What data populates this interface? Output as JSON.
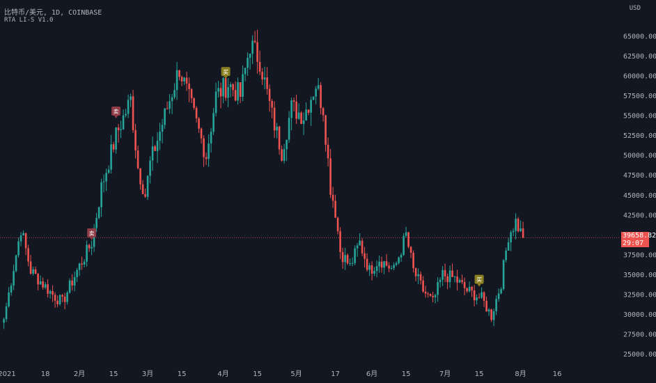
{
  "header": {
    "symbol_line": "比特币/美元, 1D, COINBASE",
    "indicator_line": "RTA LI-S V1.0"
  },
  "price_label": {
    "value": "39658.82",
    "countdown": "29:07"
  },
  "colors": {
    "background": "#131722",
    "up": "#26a69a",
    "down": "#ef5350",
    "text": "#b2b5be",
    "sell_marker": "#8e3b46",
    "buy_marker": "#8a7f1f"
  },
  "chart_data": {
    "type": "candlestick",
    "title": "比特币/美元, 1D, COINBASE",
    "ylabel": "USD",
    "ylim": [
      23500,
      67000
    ],
    "y_ticks": [
      25000,
      27500,
      30000,
      32500,
      35000,
      37500,
      40000,
      42500,
      45000,
      47500,
      50000,
      52500,
      55000,
      57500,
      60000,
      62500,
      65000
    ],
    "x_tick_labels": [
      {
        "label": "2021",
        "day": 0
      },
      {
        "label": "18",
        "day": 17
      },
      {
        "label": "2月",
        "day": 31
      },
      {
        "label": "15",
        "day": 45
      },
      {
        "label": "3月",
        "day": 59
      },
      {
        "label": "15",
        "day": 73
      },
      {
        "label": "4月",
        "day": 90
      },
      {
        "label": "15",
        "day": 104
      },
      {
        "label": "5月",
        "day": 120
      },
      {
        "label": "17",
        "day": 136
      },
      {
        "label": "6月",
        "day": 151
      },
      {
        "label": "15",
        "day": 165
      },
      {
        "label": "7月",
        "day": 181
      },
      {
        "label": "15",
        "day": 195
      },
      {
        "label": "8月",
        "day": 212
      },
      {
        "label": "16",
        "day": 227
      }
    ],
    "close_anchors": [
      [
        0,
        29400
      ],
      [
        7,
        40800
      ],
      [
        11,
        35500
      ],
      [
        20,
        32500
      ],
      [
        24,
        31500
      ],
      [
        30,
        35500
      ],
      [
        36,
        39000
      ],
      [
        40,
        46000
      ],
      [
        46,
        52500
      ],
      [
        52,
        57000
      ],
      [
        55,
        48500
      ],
      [
        58,
        45000
      ],
      [
        60,
        49000
      ],
      [
        66,
        55000
      ],
      [
        72,
        61000
      ],
      [
        76,
        57000
      ],
      [
        83,
        50000
      ],
      [
        87,
        57500
      ],
      [
        92,
        59000
      ],
      [
        97,
        57500
      ],
      [
        101,
        64000
      ],
      [
        105,
        62000
      ],
      [
        110,
        55000
      ],
      [
        114,
        50500
      ],
      [
        118,
        56000
      ],
      [
        123,
        55000
      ],
      [
        128,
        59000
      ],
      [
        131,
        56000
      ],
      [
        134,
        46000
      ],
      [
        136,
        43000
      ],
      [
        138,
        38000
      ],
      [
        142,
        36000
      ],
      [
        146,
        39000
      ],
      [
        150,
        35500
      ],
      [
        154,
        37000
      ],
      [
        160,
        35500
      ],
      [
        165,
        40000
      ],
      [
        168,
        35500
      ],
      [
        172,
        33000
      ],
      [
        176,
        31500
      ],
      [
        180,
        35000
      ],
      [
        185,
        34500
      ],
      [
        190,
        33000
      ],
      [
        196,
        32000
      ],
      [
        200,
        29800
      ],
      [
        204,
        34000
      ],
      [
        207,
        40000
      ],
      [
        210,
        41700
      ],
      [
        213,
        39660
      ]
    ],
    "last_price": 39658.82,
    "markers": [
      {
        "day": 36,
        "type": "sell",
        "label": "卖"
      },
      {
        "day": 46,
        "type": "sell",
        "label": "卖"
      },
      {
        "day": 91,
        "type": "buy",
        "label": "买"
      },
      {
        "day": 195,
        "type": "buy",
        "label": "买"
      }
    ]
  }
}
